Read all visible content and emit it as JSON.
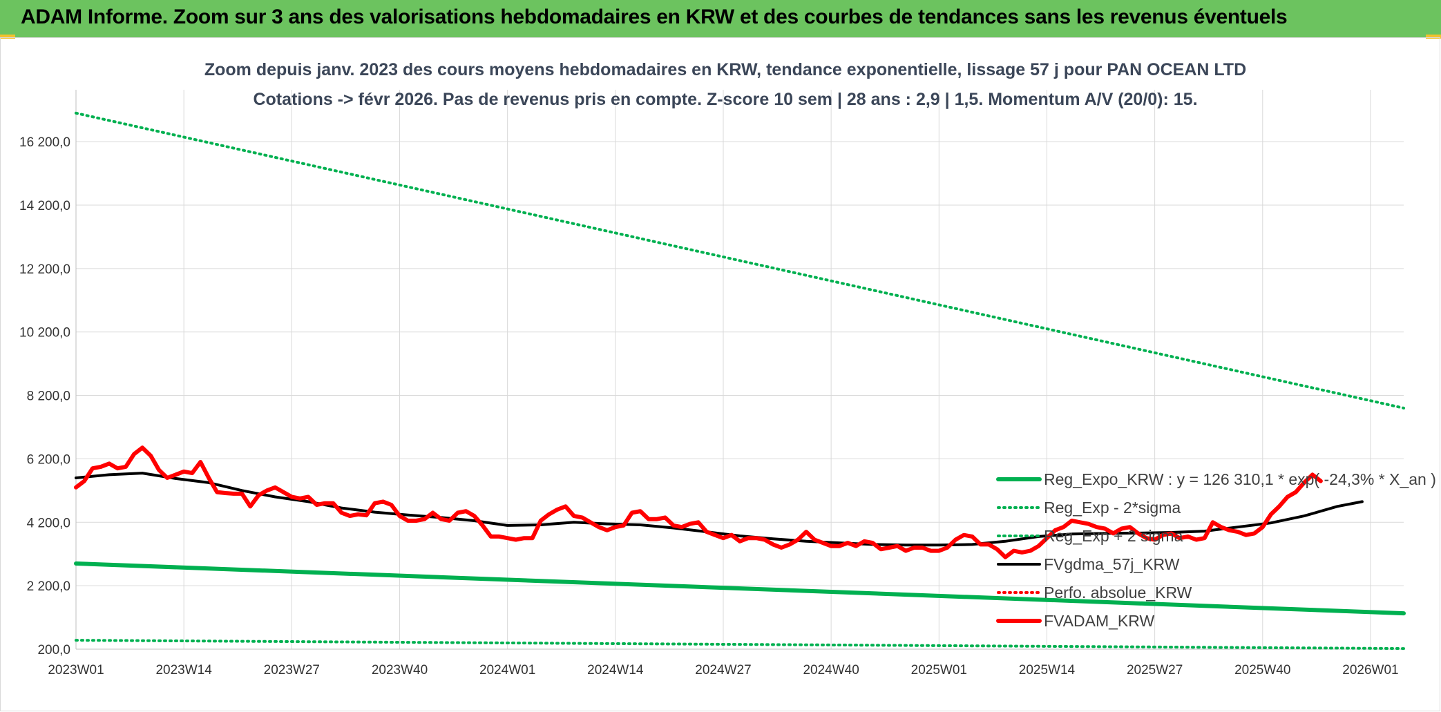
{
  "banner": {
    "title": "ADAM Informe. Zoom sur 3 ans des valorisations hebdomadaires en KRW et des courbes de tendances sans les revenus éventuels"
  },
  "colors": {
    "banner_bg": "#6cc35f",
    "banner_accent": "#f2c12e",
    "reg_expo": "#00b050",
    "band": "#00b050",
    "fvgdma": "#000000",
    "perfo": "#ff0000",
    "fvadam": "#ff0000",
    "grid": "#d9d9d9"
  },
  "chart_data": {
    "type": "line",
    "title_lines": [
      "Zoom depuis janv. 2023 des cours moyens hebdomadaires en KRW, tendance exponentielle, lissage 57 j pour PAN OCEAN LTD",
      "Cotations -> févr 2026. Pas de revenus pris en compte. Z-score 10 sem | 28 ans : 2,9 | 1,5. Momentum A/V (20/0): 15."
    ],
    "x_labels": [
      "2023W01",
      "2023W14",
      "2023W27",
      "2023W40",
      "2024W01",
      "2024W14",
      "2024W27",
      "2024W40",
      "2025W01",
      "2025W14",
      "2025W27",
      "2025W40",
      "2026W01"
    ],
    "x_range_weeks": [
      0,
      160
    ],
    "y_ticks": [
      "200,0",
      "2 200,0",
      "4 200,0",
      "6 200,0",
      "8 200,0",
      "10 200,0",
      "12 200,0",
      "14 200,0",
      "16 200,0"
    ],
    "y_tick_values": [
      200,
      2200,
      4200,
      6200,
      8200,
      10200,
      12200,
      14200,
      16200
    ],
    "ylim": [
      200,
      17400
    ],
    "grid": true,
    "legend_position": "right",
    "series": [
      {
        "name": "Reg_Expo_KRW : y = 126 310,1 * exp( -24,3% *  X_an )",
        "style": "solid-thick",
        "color": "#00b050",
        "points": [
          [
            0,
            2900
          ],
          [
            160,
            1330
          ]
        ]
      },
      {
        "name": "Reg_Exp - 2*sigma",
        "style": "dotted",
        "color": "#00b050",
        "points": [
          [
            0,
            480
          ],
          [
            160,
            220
          ]
        ]
      },
      {
        "name": "Reg_Exp + 2 sigma",
        "style": "dotted",
        "color": "#00b050",
        "points": [
          [
            0,
            17100
          ],
          [
            160,
            7800
          ]
        ]
      },
      {
        "name": "FVgdma_57j_KRW",
        "style": "solid",
        "color": "#000000",
        "points": [
          [
            0,
            5600
          ],
          [
            4,
            5700
          ],
          [
            8,
            5750
          ],
          [
            12,
            5580
          ],
          [
            16,
            5450
          ],
          [
            20,
            5200
          ],
          [
            24,
            5000
          ],
          [
            28,
            4850
          ],
          [
            32,
            4650
          ],
          [
            36,
            4520
          ],
          [
            40,
            4430
          ],
          [
            44,
            4350
          ],
          [
            48,
            4250
          ],
          [
            52,
            4100
          ],
          [
            56,
            4120
          ],
          [
            60,
            4200
          ],
          [
            64,
            4150
          ],
          [
            68,
            4120
          ],
          [
            72,
            4020
          ],
          [
            76,
            3900
          ],
          [
            80,
            3770
          ],
          [
            84,
            3680
          ],
          [
            88,
            3600
          ],
          [
            92,
            3550
          ],
          [
            96,
            3500
          ],
          [
            100,
            3480
          ],
          [
            104,
            3480
          ],
          [
            108,
            3500
          ],
          [
            112,
            3600
          ],
          [
            116,
            3750
          ],
          [
            120,
            3830
          ],
          [
            124,
            3850
          ],
          [
            128,
            3860
          ],
          [
            132,
            3880
          ],
          [
            136,
            3920
          ],
          [
            140,
            4050
          ],
          [
            144,
            4180
          ],
          [
            148,
            4400
          ],
          [
            152,
            4700
          ],
          [
            155,
            4850
          ]
        ]
      },
      {
        "name": "Perfo. absolue_KRW",
        "style": "dotted",
        "color": "#ff0000",
        "points": []
      },
      {
        "name": "FVADAM_KRW",
        "style": "solid-thick",
        "color": "#ff0000",
        "points": [
          [
            0,
            5300
          ],
          [
            1,
            5500
          ],
          [
            2,
            5900
          ],
          [
            3,
            5950
          ],
          [
            4,
            6050
          ],
          [
            5,
            5900
          ],
          [
            6,
            5950
          ],
          [
            7,
            6350
          ],
          [
            8,
            6550
          ],
          [
            9,
            6300
          ],
          [
            10,
            5850
          ],
          [
            11,
            5600
          ],
          [
            12,
            5700
          ],
          [
            13,
            5800
          ],
          [
            14,
            5750
          ],
          [
            15,
            6100
          ],
          [
            16,
            5600
          ],
          [
            17,
            5150
          ],
          [
            18,
            5120
          ],
          [
            19,
            5100
          ],
          [
            20,
            5100
          ],
          [
            21,
            4700
          ],
          [
            22,
            5050
          ],
          [
            23,
            5200
          ],
          [
            24,
            5300
          ],
          [
            25,
            5150
          ],
          [
            26,
            5000
          ],
          [
            27,
            4950
          ],
          [
            28,
            5000
          ],
          [
            29,
            4750
          ],
          [
            30,
            4800
          ],
          [
            31,
            4800
          ],
          [
            32,
            4500
          ],
          [
            33,
            4400
          ],
          [
            34,
            4450
          ],
          [
            35,
            4420
          ],
          [
            36,
            4800
          ],
          [
            37,
            4850
          ],
          [
            38,
            4750
          ],
          [
            39,
            4400
          ],
          [
            40,
            4250
          ],
          [
            41,
            4250
          ],
          [
            42,
            4300
          ],
          [
            43,
            4500
          ],
          [
            44,
            4300
          ],
          [
            45,
            4250
          ],
          [
            46,
            4500
          ],
          [
            47,
            4550
          ],
          [
            48,
            4400
          ],
          [
            49,
            4100
          ],
          [
            50,
            3750
          ],
          [
            51,
            3750
          ],
          [
            52,
            3700
          ],
          [
            53,
            3650
          ],
          [
            54,
            3700
          ],
          [
            55,
            3700
          ],
          [
            56,
            4250
          ],
          [
            57,
            4450
          ],
          [
            58,
            4600
          ],
          [
            59,
            4700
          ],
          [
            60,
            4400
          ],
          [
            61,
            4350
          ],
          [
            62,
            4200
          ],
          [
            63,
            4050
          ],
          [
            64,
            3950
          ],
          [
            65,
            4050
          ],
          [
            66,
            4100
          ],
          [
            67,
            4500
          ],
          [
            68,
            4550
          ],
          [
            69,
            4300
          ],
          [
            70,
            4300
          ],
          [
            71,
            4350
          ],
          [
            72,
            4100
          ],
          [
            73,
            4050
          ],
          [
            74,
            4150
          ],
          [
            75,
            4200
          ],
          [
            76,
            3900
          ],
          [
            77,
            3800
          ],
          [
            78,
            3700
          ],
          [
            79,
            3800
          ],
          [
            80,
            3600
          ],
          [
            81,
            3700
          ],
          [
            82,
            3700
          ],
          [
            83,
            3650
          ],
          [
            84,
            3500
          ],
          [
            85,
            3400
          ],
          [
            86,
            3500
          ],
          [
            87,
            3650
          ],
          [
            88,
            3900
          ],
          [
            89,
            3650
          ],
          [
            90,
            3550
          ],
          [
            91,
            3450
          ],
          [
            92,
            3450
          ],
          [
            93,
            3550
          ],
          [
            94,
            3450
          ],
          [
            95,
            3600
          ],
          [
            96,
            3550
          ],
          [
            97,
            3350
          ],
          [
            98,
            3400
          ],
          [
            99,
            3450
          ],
          [
            100,
            3300
          ],
          [
            101,
            3400
          ],
          [
            102,
            3400
          ],
          [
            103,
            3300
          ],
          [
            104,
            3300
          ],
          [
            105,
            3400
          ],
          [
            106,
            3650
          ],
          [
            107,
            3800
          ],
          [
            108,
            3750
          ],
          [
            109,
            3500
          ],
          [
            110,
            3500
          ],
          [
            111,
            3350
          ],
          [
            112,
            3100
          ],
          [
            113,
            3300
          ],
          [
            114,
            3250
          ],
          [
            115,
            3300
          ],
          [
            116,
            3450
          ],
          [
            117,
            3700
          ],
          [
            118,
            3950
          ],
          [
            119,
            4050
          ],
          [
            120,
            4250
          ],
          [
            121,
            4200
          ],
          [
            122,
            4150
          ],
          [
            123,
            4050
          ],
          [
            124,
            4000
          ],
          [
            125,
            3850
          ],
          [
            126,
            4000
          ],
          [
            127,
            4050
          ],
          [
            128,
            3850
          ],
          [
            129,
            3700
          ],
          [
            130,
            3650
          ],
          [
            131,
            3800
          ],
          [
            132,
            3850
          ],
          [
            133,
            3700
          ],
          [
            134,
            3750
          ],
          [
            135,
            3650
          ],
          [
            136,
            3700
          ],
          [
            137,
            4200
          ],
          [
            138,
            4050
          ],
          [
            139,
            3950
          ],
          [
            140,
            3900
          ],
          [
            141,
            3800
          ],
          [
            142,
            3850
          ],
          [
            143,
            4050
          ],
          [
            144,
            4450
          ],
          [
            145,
            4700
          ],
          [
            146,
            5000
          ],
          [
            147,
            5150
          ],
          [
            148,
            5450
          ],
          [
            149,
            5700
          ],
          [
            150,
            5500
          ]
        ]
      }
    ]
  }
}
